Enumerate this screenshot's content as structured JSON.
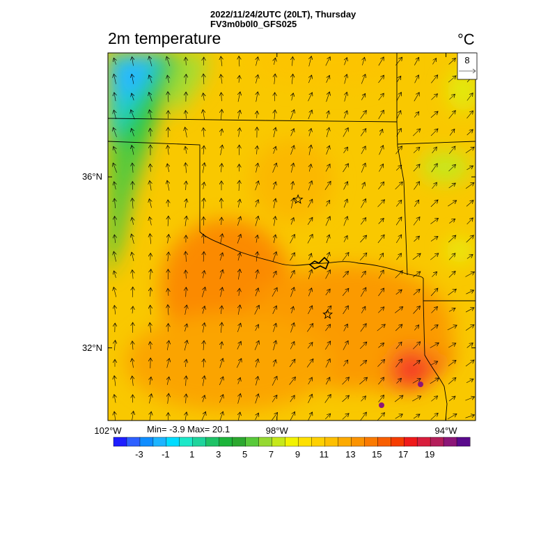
{
  "header": {
    "line1": "2022/11/24/2UTC (20LT), Thursday",
    "line2": "FV3m0b0l0_GFS025"
  },
  "title": "2m temperature",
  "units": "°C",
  "vector_reference": {
    "value": "8"
  },
  "axes": {
    "lat_labels": [
      {
        "text": "36°N",
        "lat": 36
      },
      {
        "text": "32°N",
        "lat": 32
      }
    ],
    "lon_labels": [
      {
        "text": "102°W",
        "lon": -102
      },
      {
        "text": "98°W",
        "lon": -98
      },
      {
        "text": "94°W",
        "lon": -94
      }
    ]
  },
  "stats": {
    "text": "Min= -3.9 Max= 20.1",
    "min": -3.9,
    "max": 20.1
  },
  "colorbar": {
    "colors": [
      "#1e1eff",
      "#2e60ff",
      "#0f8dff",
      "#1db4ff",
      "#00dcff",
      "#1de8c8",
      "#1fd49c",
      "#1fc266",
      "#1db43a",
      "#2ca82f",
      "#58c93a",
      "#96d932",
      "#c6e81a",
      "#f2f200",
      "#fee000",
      "#fed000",
      "#fdbf00",
      "#fcaa00",
      "#fb9300",
      "#fa7a00",
      "#f85e00",
      "#f53c00",
      "#ef1a1a",
      "#d81e3c",
      "#b41e5a",
      "#8c1678",
      "#5a0a8c"
    ],
    "labels": [
      {
        "text": "-3",
        "index": 1
      },
      {
        "text": "-1",
        "index": 3
      },
      {
        "text": "1",
        "index": 5
      },
      {
        "text": "3",
        "index": 7
      },
      {
        "text": "5",
        "index": 9
      },
      {
        "text": "7",
        "index": 11
      },
      {
        "text": "9",
        "index": 13
      },
      {
        "text": "11",
        "index": 15
      },
      {
        "text": "13",
        "index": 17
      },
      {
        "text": "15",
        "index": 19
      },
      {
        "text": "17",
        "index": 21
      },
      {
        "text": "19",
        "index": 23
      }
    ]
  },
  "map": {
    "lon_range": [
      -102,
      -93.3
    ],
    "lat_range": [
      30.3,
      38.9
    ],
    "background_color": "#f9c800",
    "markers": [
      {
        "name": "star-marker-oklahoma-city",
        "lon": -97.5,
        "lat": 35.47
      },
      {
        "name": "star-marker-dallas",
        "lon": -96.8,
        "lat": 32.78
      }
    ]
  }
}
